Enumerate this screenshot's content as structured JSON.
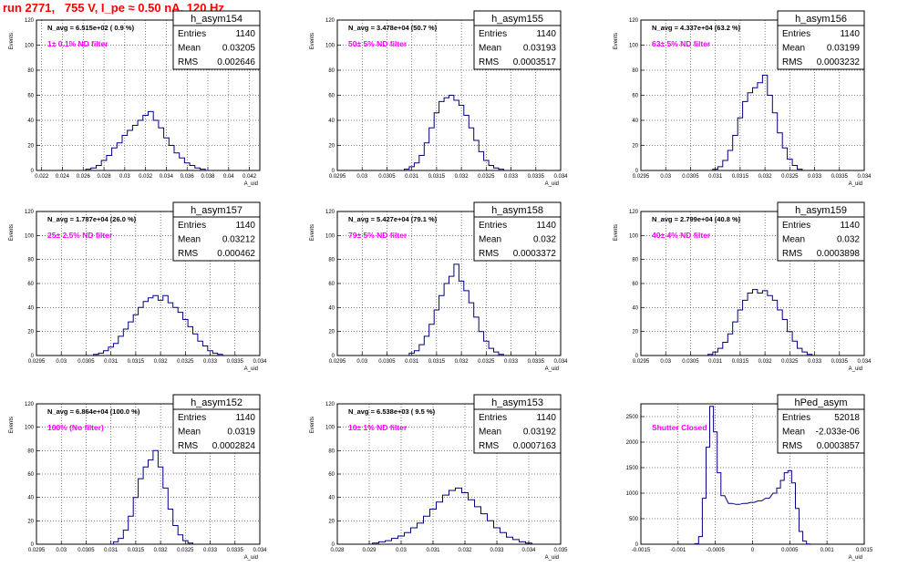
{
  "page_title": "run 2771,   755 V, I_pe ≈ 0.50 nA, 120 Hz",
  "colors": {
    "title": "#ff0000",
    "histogram_line": "#000080",
    "filter_label": "#ff00ff",
    "grid": "#000000"
  },
  "chart_data": [
    {
      "type": "histogram",
      "name": "h_asym154",
      "stats": {
        "entries_label": "Entries",
        "entries": "1140",
        "mean_label": "Mean",
        "mean": "0.03205",
        "rms_label": "RMS",
        "rms": "0.002646"
      },
      "annotation": "N_avg = 6.515e+02 ( 0.9 %)",
      "filter_label": "1± 0.1% ND filter",
      "ylabel": "Events",
      "xlabel": "A_uid",
      "xlim": [
        0.0215,
        0.043
      ],
      "ylim": [
        0,
        120
      ],
      "grid": true,
      "xticks": [
        0.022,
        0.024,
        0.026,
        0.028,
        0.03,
        0.032,
        0.034,
        0.036,
        0.038,
        0.04,
        0.042
      ],
      "xticklabels": [
        "0.022",
        "0.024",
        "0.026",
        "0.028",
        "0.03",
        "0.032",
        "0.034",
        "0.036",
        "0.038",
        "0.04",
        "0.042"
      ],
      "yticks": [
        0,
        20,
        40,
        60,
        80,
        100,
        120
      ],
      "x": [
        0.0265,
        0.027,
        0.0275,
        0.028,
        0.0285,
        0.029,
        0.0295,
        0.03,
        0.0305,
        0.031,
        0.0315,
        0.032,
        0.0325,
        0.033,
        0.0335,
        0.034,
        0.0345,
        0.035,
        0.0355,
        0.036,
        0.0365,
        0.037,
        0.0375,
        0.038
      ],
      "values": [
        1,
        2,
        4,
        8,
        12,
        18,
        22,
        28,
        32,
        36,
        40,
        44,
        47,
        40,
        34,
        26,
        20,
        14,
        10,
        6,
        4,
        2,
        1,
        0
      ]
    },
    {
      "type": "histogram",
      "name": "h_asym155",
      "stats": {
        "entries_label": "Entries",
        "entries": "1140",
        "mean_label": "Mean",
        "mean": "0.03193",
        "rms_label": "RMS",
        "rms": "0.0003517"
      },
      "annotation": "N_avg = 3.478e+04 (50.7 %)",
      "filter_label": "50± 5% ND filter",
      "ylabel": "Events",
      "xlabel": "A_uid",
      "xlim": [
        0.0295,
        0.034
      ],
      "ylim": [
        0,
        120
      ],
      "grid": true,
      "xticks": [
        0.0295,
        0.03,
        0.0305,
        0.031,
        0.0315,
        0.032,
        0.0325,
        0.033,
        0.0335,
        0.034
      ],
      "xticklabels": [
        "0.0295",
        "0.03",
        "0.0305",
        "0.031",
        "0.0315",
        "0.032",
        "0.0325",
        "0.033",
        "0.0335",
        "0.034"
      ],
      "yticks": [
        0,
        20,
        40,
        60,
        80,
        100,
        120
      ],
      "x": [
        0.0309,
        0.031,
        0.0311,
        0.0312,
        0.0313,
        0.0314,
        0.0315,
        0.0316,
        0.0317,
        0.0318,
        0.0319,
        0.032,
        0.0321,
        0.0322,
        0.0323,
        0.0324,
        0.0325,
        0.0326,
        0.0327,
        0.0328
      ],
      "values": [
        1,
        3,
        6,
        12,
        22,
        34,
        46,
        55,
        58,
        60,
        56,
        52,
        44,
        34,
        24,
        15,
        8,
        4,
        2,
        1
      ]
    },
    {
      "type": "histogram",
      "name": "h_asym156",
      "stats": {
        "entries_label": "Entries",
        "entries": "1140",
        "mean_label": "Mean",
        "mean": "0.03199",
        "rms_label": "RMS",
        "rms": "0.0003232"
      },
      "annotation": "N_avg = 4.337e+04 (63.2 %)",
      "filter_label": "63± 5% ND filter",
      "ylabel": "Events",
      "xlabel": "A_uid",
      "xlim": [
        0.0295,
        0.034
      ],
      "ylim": [
        0,
        120
      ],
      "grid": true,
      "xticks": [
        0.0295,
        0.03,
        0.0305,
        0.031,
        0.0315,
        0.032,
        0.0325,
        0.033,
        0.0335,
        0.034
      ],
      "xticklabels": [
        "0.0295",
        "0.03",
        "0.0305",
        "0.031",
        "0.0315",
        "0.032",
        "0.0325",
        "0.033",
        "0.0335",
        "0.034"
      ],
      "yticks": [
        0,
        20,
        40,
        60,
        80,
        100,
        120
      ],
      "x": [
        0.031,
        0.0311,
        0.0312,
        0.0313,
        0.0314,
        0.0315,
        0.0316,
        0.0317,
        0.0318,
        0.0319,
        0.032,
        0.0321,
        0.0322,
        0.0323,
        0.0324,
        0.0325,
        0.0326,
        0.0327
      ],
      "values": [
        1,
        3,
        8,
        16,
        28,
        42,
        55,
        62,
        66,
        70,
        76,
        60,
        46,
        30,
        18,
        9,
        4,
        1
      ]
    },
    {
      "type": "histogram",
      "name": "h_asym157",
      "stats": {
        "entries_label": "Entries",
        "entries": "1140",
        "mean_label": "Mean",
        "mean": "0.03212",
        "rms_label": "RMS",
        "rms": "0.000462"
      },
      "annotation": "N_avg = 1.787e+04 (26.0 %)",
      "filter_label": "25± 2.5% ND filter",
      "ylabel": "Events",
      "xlabel": "A_uid",
      "xlim": [
        0.0295,
        0.034
      ],
      "ylim": [
        0,
        120
      ],
      "grid": true,
      "xticks": [
        0.0295,
        0.03,
        0.0305,
        0.031,
        0.0315,
        0.032,
        0.0325,
        0.033,
        0.0335,
        0.034
      ],
      "xticklabels": [
        "0.0295",
        "0.03",
        "0.0305",
        "0.031",
        "0.0315",
        "0.032",
        "0.0325",
        "0.033",
        "0.0335",
        "0.034"
      ],
      "yticks": [
        0,
        20,
        40,
        60,
        80,
        100,
        120
      ],
      "x": [
        0.0307,
        0.0308,
        0.0309,
        0.031,
        0.0311,
        0.0312,
        0.0313,
        0.0314,
        0.0315,
        0.0316,
        0.0317,
        0.0318,
        0.0319,
        0.032,
        0.0321,
        0.0322,
        0.0323,
        0.0324,
        0.0325,
        0.0326,
        0.0327,
        0.0328,
        0.0329,
        0.033,
        0.0331,
        0.0332
      ],
      "values": [
        1,
        2,
        4,
        7,
        10,
        16,
        22,
        28,
        34,
        40,
        45,
        48,
        50,
        46,
        50,
        44,
        40,
        36,
        30,
        24,
        18,
        12,
        8,
        4,
        2,
        1
      ]
    },
    {
      "type": "histogram",
      "name": "h_asym158",
      "stats": {
        "entries_label": "Entries",
        "entries": "1140",
        "mean_label": "Mean",
        "mean": "0.032",
        "rms_label": "RMS",
        "rms": "0.0003372"
      },
      "annotation": "N_avg = 5.427e+04 (79.1 %)",
      "filter_label": "79± 5% ND filter",
      "ylabel": "Events",
      "xlabel": "A_uid",
      "xlim": [
        0.0295,
        0.034
      ],
      "ylim": [
        0,
        120
      ],
      "grid": true,
      "xticks": [
        0.0295,
        0.03,
        0.0305,
        0.031,
        0.0315,
        0.032,
        0.0325,
        0.033,
        0.0335,
        0.034
      ],
      "xticklabels": [
        "0.0295",
        "0.03",
        "0.0305",
        "0.031",
        "0.0315",
        "0.032",
        "0.0325",
        "0.033",
        "0.0335",
        "0.034"
      ],
      "yticks": [
        0,
        20,
        40,
        60,
        80,
        100,
        120
      ],
      "x": [
        0.031,
        0.0311,
        0.0312,
        0.0313,
        0.0314,
        0.0315,
        0.0316,
        0.0317,
        0.0318,
        0.0319,
        0.032,
        0.0321,
        0.0322,
        0.0323,
        0.0324,
        0.0325,
        0.0326,
        0.0327,
        0.0328
      ],
      "values": [
        2,
        4,
        9,
        16,
        26,
        38,
        50,
        60,
        66,
        76,
        62,
        54,
        44,
        32,
        20,
        12,
        6,
        3,
        1
      ]
    },
    {
      "type": "histogram",
      "name": "h_asym159",
      "stats": {
        "entries_label": "Entries",
        "entries": "1140",
        "mean_label": "Mean",
        "mean": "0.032",
        "rms_label": "RMS",
        "rms": "0.0003898"
      },
      "annotation": "N_avg = 2.799e+04 (40.8 %)",
      "filter_label": "40± 4% ND filter",
      "ylabel": "Events",
      "xlabel": "A_uid",
      "xlim": [
        0.0295,
        0.034
      ],
      "ylim": [
        0,
        120
      ],
      "grid": true,
      "xticks": [
        0.0295,
        0.03,
        0.0305,
        0.031,
        0.0315,
        0.032,
        0.0325,
        0.033,
        0.0335,
        0.034
      ],
      "xticklabels": [
        "0.0295",
        "0.03",
        "0.0305",
        "0.031",
        "0.0315",
        "0.032",
        "0.0325",
        "0.033",
        "0.0335",
        "0.034"
      ],
      "yticks": [
        0,
        20,
        40,
        60,
        80,
        100,
        120
      ],
      "x": [
        0.0309,
        0.031,
        0.0311,
        0.0312,
        0.0313,
        0.0314,
        0.0315,
        0.0316,
        0.0317,
        0.0318,
        0.0319,
        0.032,
        0.0321,
        0.0322,
        0.0323,
        0.0324,
        0.0325,
        0.0326,
        0.0327,
        0.0328,
        0.0329
      ],
      "values": [
        1,
        3,
        6,
        11,
        18,
        28,
        38,
        46,
        52,
        55,
        52,
        54,
        50,
        46,
        38,
        30,
        20,
        12,
        6,
        3,
        1
      ]
    },
    {
      "type": "histogram",
      "name": "h_asym152",
      "stats": {
        "entries_label": "Entries",
        "entries": "1140",
        "mean_label": "Mean",
        "mean": "0.0319",
        "rms_label": "RMS",
        "rms": "0.0002824"
      },
      "annotation": "N_avg = 6.864e+04 (100.0 %)",
      "filter_label": "100% (No filter)",
      "ylabel": "Events",
      "xlabel": "A_uid",
      "xlim": [
        0.0295,
        0.034
      ],
      "ylim": [
        0,
        120
      ],
      "grid": true,
      "xticks": [
        0.0295,
        0.03,
        0.0305,
        0.031,
        0.0315,
        0.032,
        0.0325,
        0.033,
        0.0335,
        0.034
      ],
      "xticklabels": [
        "0.0295",
        "0.03",
        "0.0305",
        "0.031",
        "0.0315",
        "0.032",
        "0.0325",
        "0.033",
        "0.0335",
        "0.034"
      ],
      "yticks": [
        0,
        20,
        40,
        60,
        80,
        100,
        120
      ],
      "x": [
        0.0311,
        0.0312,
        0.0313,
        0.0314,
        0.0315,
        0.0316,
        0.0317,
        0.0318,
        0.0319,
        0.032,
        0.0321,
        0.0322,
        0.0323,
        0.0324,
        0.0325,
        0.0326
      ],
      "values": [
        2,
        5,
        12,
        24,
        40,
        56,
        66,
        72,
        80,
        66,
        48,
        30,
        16,
        8,
        3,
        1
      ]
    },
    {
      "type": "histogram",
      "name": "h_asym153",
      "stats": {
        "entries_label": "Entries",
        "entries": "1140",
        "mean_label": "Mean",
        "mean": "0.03192",
        "rms_label": "RMS",
        "rms": "0.0007163"
      },
      "annotation": "N_avg = 6.538e+03 ( 9.5 %)",
      "filter_label": "10± 1% ND filter",
      "ylabel": "Events",
      "xlabel": "A_uid",
      "xlim": [
        0.028,
        0.035
      ],
      "ylim": [
        0,
        120
      ],
      "grid": true,
      "xticks": [
        0.028,
        0.029,
        0.03,
        0.031,
        0.032,
        0.033,
        0.034,
        0.035
      ],
      "xticklabels": [
        "0.028",
        "0.029",
        "0.03",
        "0.031",
        "0.032",
        "0.033",
        "0.034",
        "0.035"
      ],
      "yticks": [
        0,
        20,
        40,
        60,
        80,
        100,
        120
      ],
      "x": [
        0.0292,
        0.0294,
        0.0296,
        0.0298,
        0.03,
        0.0302,
        0.0304,
        0.0306,
        0.0308,
        0.031,
        0.0312,
        0.0314,
        0.0316,
        0.0318,
        0.032,
        0.0322,
        0.0324,
        0.0326,
        0.0328,
        0.033,
        0.0332,
        0.0334,
        0.0336,
        0.0338,
        0.034
      ],
      "values": [
        1,
        2,
        3,
        5,
        7,
        10,
        14,
        18,
        24,
        30,
        36,
        42,
        46,
        48,
        44,
        38,
        32,
        26,
        20,
        14,
        10,
        6,
        4,
        2,
        1
      ]
    },
    {
      "type": "histogram",
      "name": "hPed_asym",
      "stats": {
        "entries_label": "Entries",
        "entries": "52018",
        "mean_label": "Mean",
        "mean": "-2.033e-06",
        "rms_label": "RMS",
        "rms": "0.0003857"
      },
      "annotation": "",
      "filter_label": "Shutter Closed",
      "ylabel": "",
      "xlabel": "A_uid",
      "xlim": [
        -0.0015,
        0.0015
      ],
      "ylim": [
        0,
        2750
      ],
      "grid": true,
      "xticks": [
        -0.0015,
        -0.001,
        -0.0005,
        0,
        0.0005,
        0.001,
        0.0015
      ],
      "xticklabels": [
        "-0.0015",
        "-0.001",
        "-0.0005",
        "0",
        "0.0005",
        "0.001",
        "0.0015"
      ],
      "yticks": [
        0,
        500,
        1000,
        1500,
        2000,
        2500
      ],
      "x": [
        -0.00075,
        -0.0007,
        -0.00065,
        -0.0006,
        -0.00055,
        -0.0005,
        -0.00045,
        -0.0004,
        -0.0003,
        -0.0002,
        -0.0001,
        0.0,
        0.0001,
        0.0002,
        0.0003,
        0.00035,
        0.0004,
        0.00045,
        0.0005,
        0.00055,
        0.0006,
        0.00065,
        0.0007,
        0.00075
      ],
      "values": [
        10,
        150,
        900,
        1900,
        2700,
        2200,
        1400,
        950,
        800,
        780,
        800,
        820,
        850,
        900,
        1000,
        1100,
        1250,
        1400,
        1440,
        1200,
        700,
        250,
        60,
        5
      ]
    }
  ]
}
